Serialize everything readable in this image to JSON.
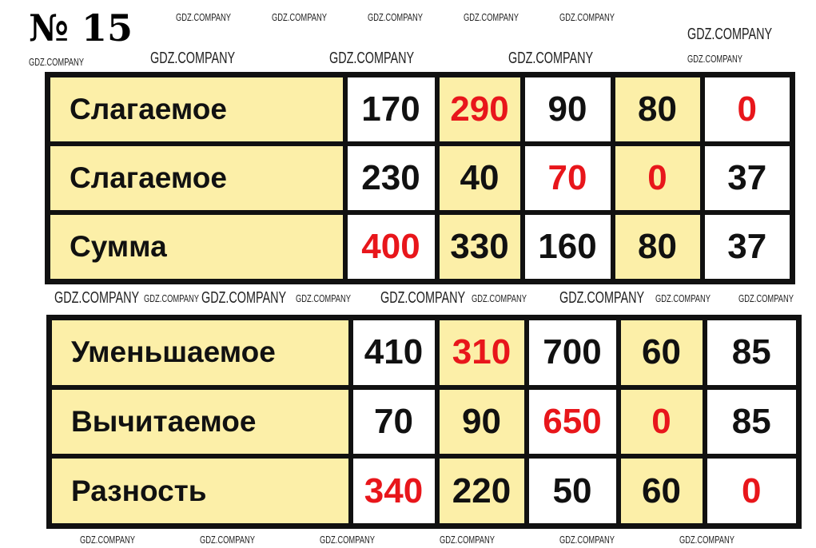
{
  "title": "№ 15",
  "colors": {
    "cell_yellow": "#fcefa8",
    "answer_red": "#e8161b",
    "border": "#111111"
  },
  "watermark": "GDZ.COMPANY",
  "addition_table": {
    "rows": [
      {
        "label": "Слагаемое",
        "values": [
          "170",
          "290",
          "90",
          "80",
          "0"
        ],
        "answers": [
          false,
          true,
          false,
          false,
          true
        ]
      },
      {
        "label": "Слагаемое",
        "values": [
          "230",
          "40",
          "70",
          "0",
          "37"
        ],
        "answers": [
          false,
          false,
          true,
          true,
          false
        ]
      },
      {
        "label": "Сумма",
        "values": [
          "400",
          "330",
          "160",
          "80",
          "37"
        ],
        "answers": [
          true,
          false,
          false,
          false,
          false
        ]
      }
    ]
  },
  "subtraction_table": {
    "rows": [
      {
        "label": "Уменьшаемое",
        "values": [
          "410",
          "310",
          "700",
          "60",
          "85"
        ],
        "answers": [
          false,
          true,
          false,
          false,
          false
        ]
      },
      {
        "label": "Вычитаемое",
        "values": [
          "70",
          "90",
          "650",
          "0",
          "85"
        ],
        "answers": [
          false,
          false,
          true,
          true,
          false
        ]
      },
      {
        "label": "Разность",
        "values": [
          "340",
          "220",
          "50",
          "60",
          "0"
        ],
        "answers": [
          true,
          false,
          false,
          false,
          true
        ]
      }
    ]
  }
}
